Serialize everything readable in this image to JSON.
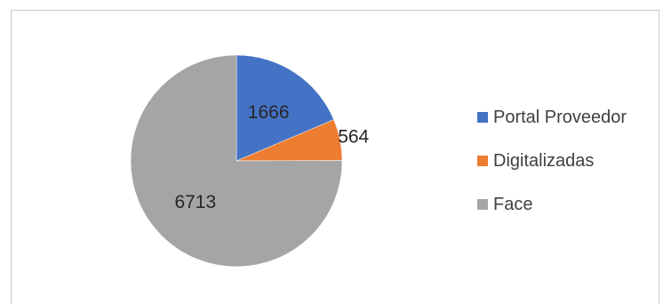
{
  "chart_data": {
    "type": "pie",
    "title": "",
    "categories": [
      "Portal Proveedor",
      "Digitalizadas",
      "Face"
    ],
    "values": [
      1666,
      564,
      6713
    ],
    "labels": [
      "1666",
      "564",
      "6713"
    ],
    "colors": [
      "#4472c4",
      "#ed7d31",
      "#a5a5a5"
    ],
    "legend_position": "right",
    "start_angle_deg": 0,
    "direction": "clockwise"
  }
}
